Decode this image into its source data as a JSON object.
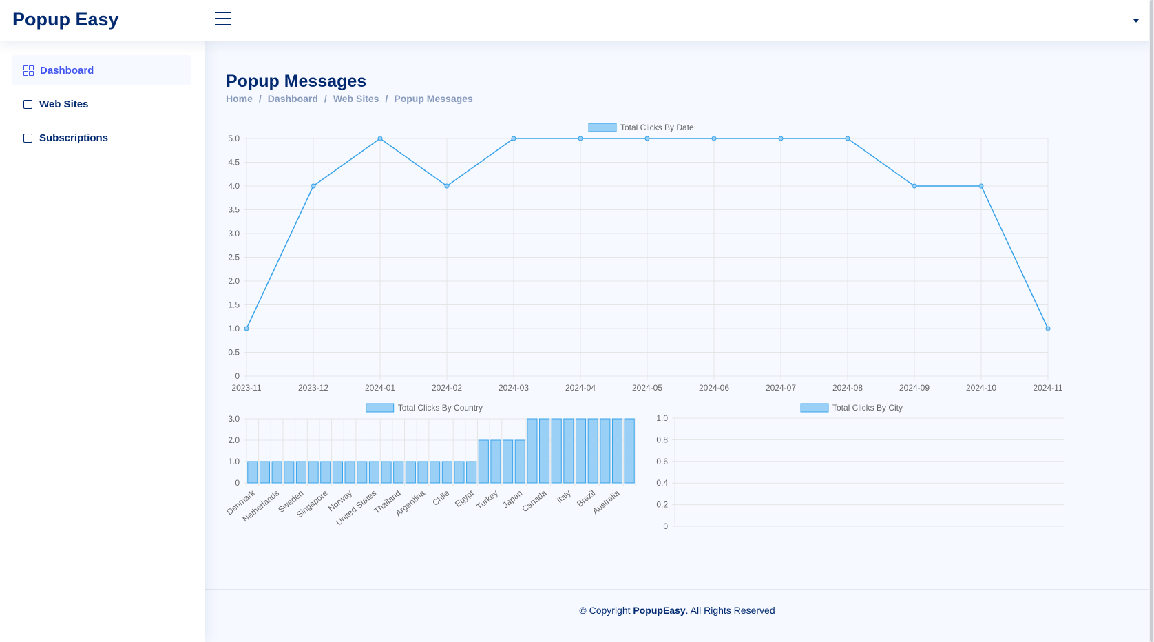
{
  "app": {
    "title": "Popup Easy"
  },
  "sidebar": {
    "items": [
      {
        "label": "Dashboard",
        "icon": "grid-icon",
        "active": true
      },
      {
        "label": "Web Sites",
        "icon": "square-icon",
        "active": false
      },
      {
        "label": "Subscriptions",
        "icon": "square-icon",
        "active": false
      }
    ]
  },
  "page": {
    "title": "Popup Messages",
    "breadcrumb": [
      "Home",
      "Dashboard",
      "Web Sites",
      "Popup Messages"
    ],
    "breadcrumb_separator": "/"
  },
  "footer": {
    "prefix": "© Copyright ",
    "brand": "PopupEasy",
    "suffix": ". All Rights Reserved"
  },
  "colors": {
    "primary": "#012970",
    "accent": "#4154f1",
    "series_fill": "#9ad0f5",
    "series_line": "#36a2eb"
  },
  "chart_data": [
    {
      "type": "line",
      "legend": "Total Clicks By Date",
      "legend_position": "top",
      "x": [
        "2023-11",
        "2023-12",
        "2024-01",
        "2024-02",
        "2024-03",
        "2024-04",
        "2024-05",
        "2024-06",
        "2024-07",
        "2024-08",
        "2024-09",
        "2024-10",
        "2024-11"
      ],
      "values": [
        1,
        4,
        5,
        4,
        5,
        5,
        5,
        5,
        5,
        5,
        4,
        4,
        1
      ],
      "ylim": [
        0,
        5
      ],
      "yticks": [
        "0",
        "0.5",
        "1.0",
        "1.5",
        "2.0",
        "2.5",
        "3.0",
        "3.5",
        "4.0",
        "4.5",
        "5.0"
      ],
      "grid": true
    },
    {
      "type": "bar",
      "legend": "Total Clicks By Country",
      "legend_position": "top",
      "categories": [
        "Denmark",
        "",
        "Netherlands",
        "",
        "Sweden",
        "",
        "Singapore",
        "",
        "Norway",
        "",
        "United States",
        "",
        "Thailand",
        "",
        "Argentina",
        "",
        "Chile",
        "",
        "Egypt",
        "",
        "Turkey",
        "",
        "Japan",
        "",
        "Canada",
        "",
        "Italy",
        "",
        "Brazil",
        "",
        "Australia",
        ""
      ],
      "values": [
        1,
        1,
        1,
        1,
        1,
        1,
        1,
        1,
        1,
        1,
        1,
        1,
        1,
        1,
        1,
        1,
        1,
        1,
        1,
        2,
        2,
        2,
        2,
        3,
        3,
        3,
        3,
        3,
        3,
        3,
        3,
        3
      ],
      "ylim": [
        0,
        3
      ],
      "yticks": [
        "0",
        "1.0",
        "2.0",
        "3.0"
      ],
      "grid": true
    },
    {
      "type": "bar",
      "legend": "Total Clicks By City",
      "legend_position": "top",
      "categories": [],
      "values": [],
      "ylim": [
        0,
        1
      ],
      "yticks": [
        "0",
        "0.2",
        "0.4",
        "0.6",
        "0.8",
        "1.0"
      ],
      "grid": true
    }
  ]
}
